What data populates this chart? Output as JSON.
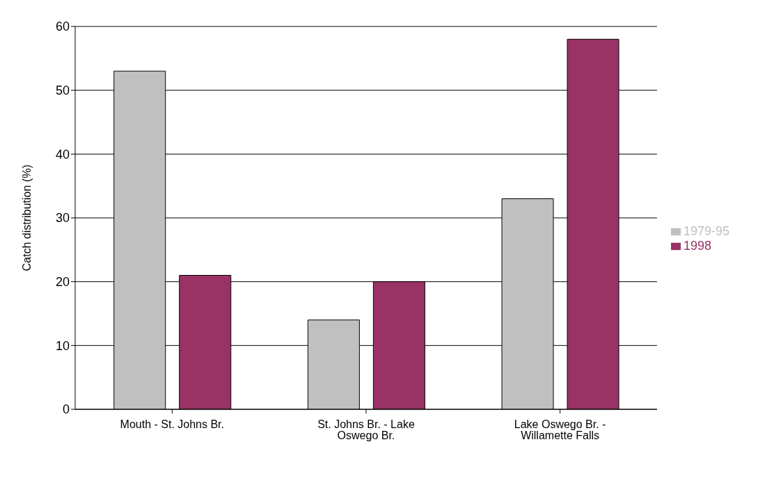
{
  "chart_data": {
    "type": "bar",
    "ylabel": "Catch distribution (%)",
    "categories": [
      "Mouth - St. Johns Br.",
      "St. Johns Br. - Lake Oswego Br.",
      "Lake Oswego Br. - Willamette Falls"
    ],
    "series": [
      {
        "name": "1979-95",
        "color": "#c0c0c0",
        "values": [
          53,
          14,
          33
        ]
      },
      {
        "name": "1998",
        "color": "#993366",
        "values": [
          21,
          20,
          58
        ]
      }
    ],
    "ylim": [
      0,
      60
    ],
    "yticks": [
      0,
      10,
      20,
      30,
      40,
      50,
      60
    ],
    "grid": "y",
    "legend": "right"
  }
}
